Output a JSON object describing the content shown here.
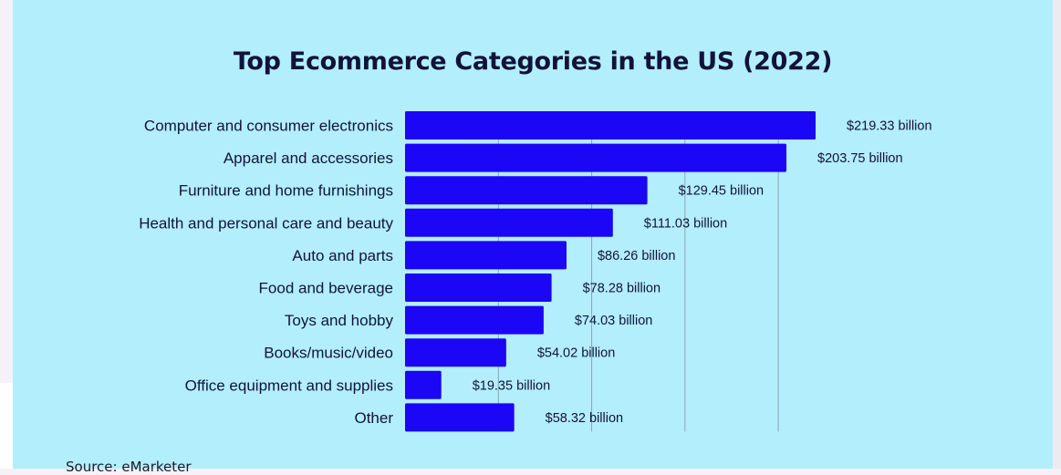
{
  "chart_data": {
    "type": "bar",
    "orientation": "horizontal",
    "title": "Top Ecommerce Categories in the US (2022)",
    "categories": [
      "Computer and consumer electronics",
      "Apparel and accessories",
      "Furniture and home furnishings",
      "Health and personal care and beauty",
      "Auto and parts",
      "Food and beverage",
      "Toys and hobby",
      "Books/music/video",
      "Office equipment and supplies",
      "Other"
    ],
    "values": [
      219.33,
      203.75,
      129.45,
      111.03,
      86.26,
      78.28,
      74.03,
      54.02,
      19.35,
      58.32
    ],
    "value_labels": [
      "$219.33 billion",
      "$203.75 billion",
      "$129.45 billion",
      "$111.03 billion",
      "$86.26 billion",
      "$78.28 billion",
      "$74.03 billion",
      "$54.02 billion",
      "$19.35 billion",
      "$58.32 billion"
    ],
    "unit": "billion USD",
    "xlim": [
      0,
      219.33
    ],
    "grid": true,
    "bar_color": "#1b06f5",
    "xlabel": "",
    "ylabel": ""
  },
  "source": "Source: eMarketer",
  "colors": {
    "background": "#b3eefc",
    "text": "#11133a",
    "gridline": "#8fa3b4"
  }
}
